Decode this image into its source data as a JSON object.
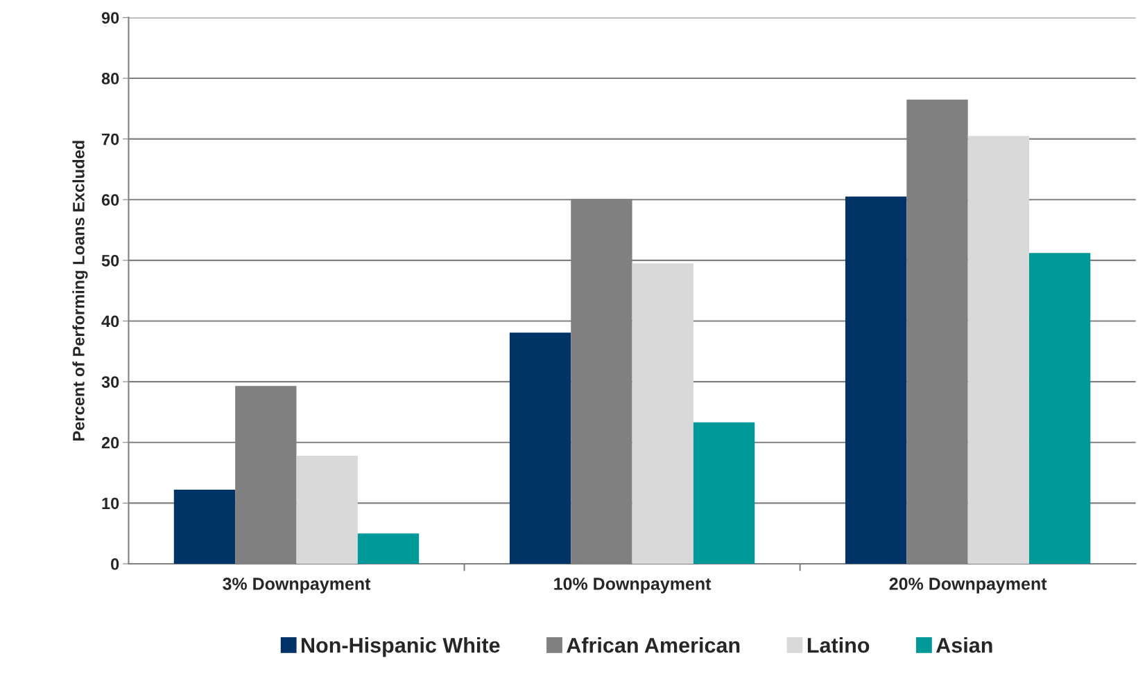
{
  "chart_data": {
    "type": "bar",
    "ylabel": "Percent of Performing Loans Excluded",
    "categories": [
      "3% Downpayment",
      "10% Downpayment",
      "20% Downpayment"
    ],
    "series": [
      {
        "name": "Non-Hispanic White",
        "color": "#003366",
        "values": [
          12.2,
          38.1,
          60.5
        ]
      },
      {
        "name": "African American",
        "color": "#808080",
        "values": [
          29.3,
          60.1,
          76.5
        ]
      },
      {
        "name": "Latino",
        "color": "#d9d9d9",
        "values": [
          17.8,
          49.5,
          70.5
        ]
      },
      {
        "name": "Asian",
        "color": "#009999",
        "values": [
          5.0,
          23.3,
          51.2
        ]
      }
    ],
    "ylim": [
      0,
      90
    ],
    "yticks": [
      0,
      10,
      20,
      30,
      40,
      50,
      60,
      70,
      80,
      90
    ],
    "grid": "y",
    "legend": "bottom"
  }
}
